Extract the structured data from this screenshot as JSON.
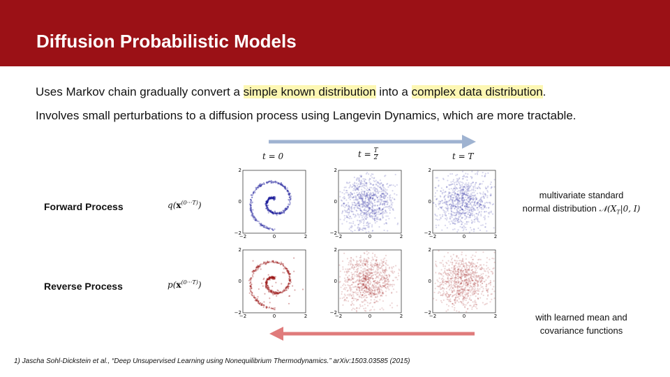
{
  "header": {
    "title": "Diffusion Probabilistic Models"
  },
  "intro": [
    [
      {
        "text": "Uses Markov chain gradually convert a ",
        "highlight": false
      },
      {
        "text": "simple known distribution",
        "highlight": true
      },
      {
        "text": " into a ",
        "highlight": false
      },
      {
        "text": "complex data distribution",
        "highlight": true
      },
      {
        "text": ".",
        "highlight": false
      }
    ],
    [
      {
        "text": "Involves small perturbations to a diffusion process using Langevin Dynamics, which are more tractable.",
        "highlight": false
      }
    ]
  ],
  "timesteps": [
    {
      "lhs": "t =",
      "rhs": "0"
    },
    {
      "lhs": "t =",
      "num": "T",
      "den": "2"
    },
    {
      "lhs": "t =",
      "rhs": "T"
    }
  ],
  "rows": [
    {
      "label": "Forward Process",
      "fn": "q",
      "open": "(",
      "var": "x",
      "sup": "(0···T)",
      "close": ")",
      "color": "#1c1c9c"
    },
    {
      "label": "Reverse Process",
      "fn": "p",
      "open": "(",
      "var": "x",
      "sup": "(0···T)",
      "close": ")",
      "color": "#9c1414"
    }
  ],
  "plot_ticks": {
    "x": [
      "−2",
      "0",
      "2"
    ],
    "y": [
      "2",
      "0",
      "−2"
    ]
  },
  "notes": {
    "forward": [
      "multivariate standard",
      "normal distribution"
    ],
    "forward_math": {
      "sym": "𝒩",
      "open": "(",
      "var": "X",
      "sub": "T",
      "rest": "|0, I)"
    },
    "reverse": [
      "with learned mean and",
      "covariance functions"
    ]
  },
  "footnote": "1) Jascha Sohl-Dickstein et al., “Deep Unsupervised Learning using Nonequilibrium Thermodynamics.” arXiv:1503.03585 (2015)"
}
